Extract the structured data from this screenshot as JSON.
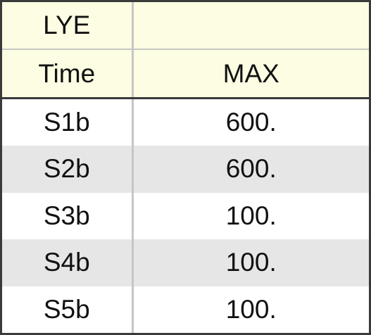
{
  "table": {
    "header_row_1": [
      "LYE",
      ""
    ],
    "header_row_2": [
      "Time",
      "MAX"
    ],
    "rows": [
      [
        "S1b",
        "600."
      ],
      [
        "S2b",
        "600."
      ],
      [
        "S3b",
        "100."
      ],
      [
        "S4b",
        "100."
      ],
      [
        "S5b",
        "100."
      ]
    ]
  },
  "colors": {
    "header_bg": "#fdfde3",
    "alt_row_bg": "#e6e6e6",
    "border_dark": "#3a3a3a",
    "divider_light": "#c6c6c6"
  }
}
